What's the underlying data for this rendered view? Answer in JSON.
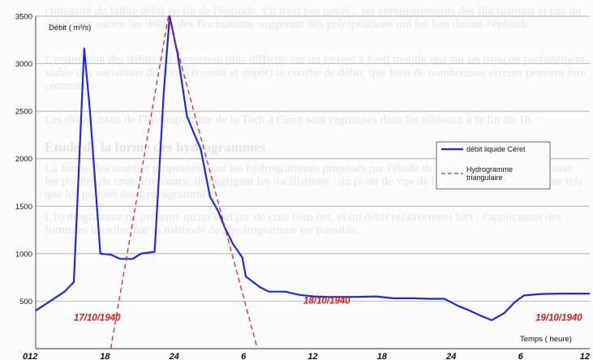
{
  "background_text": [
    "l'intensité du faible débit en fin de l'épisode, s'il n'est pas passé... les enregistrements des fluctuations et pas du débit peut suivre les débits des fluctuations suggèrent des précipitations qui les fois durant l'épisode.",
    "L'estimation des débits est beaucoup plus difficile sur un torrent à fond mobile que sur un tronçon parfaitement stable des variations du fond (érosion et dépôt) la courbe de débit, que bien de nombreuses erreurs peuvent être commises.",
    "Les débits issus de l'hydrogramme de la Tech à Céret sont regroupés dans les tableaux à la fin du 18.",
    "Étude de la forme des hydrogrammes",
    "La forme des courbes proposées pour les hydrogrammes proposés par l'étude de la DDEA est cohérente avec les pointes de crue. En contre, ils négligent les oscillations : du point de vue de l'étude des débits de pointe tels que les pointes des hydrogrammes.",
    "L'hydrogramme ne présente qu'un seul pic de crue bien net, et un débit relativement fort ; l'application des formules usuelles par la méthode de l'hydrogramme est possible."
  ],
  "chart_data": {
    "type": "line",
    "ylabel": "Débit ( m³/s)",
    "xlabel": "Temps ( heure)",
    "ylim": [
      0,
      3500
    ],
    "yticks": [
      0,
      500,
      1000,
      1500,
      2000,
      2500,
      3000,
      3500
    ],
    "ytick_labels": [
      "",
      "500",
      "1000",
      "1500",
      "2000",
      "2500",
      "3000",
      "3500"
    ],
    "xlim": [
      12,
      60
    ],
    "xticks": [
      12,
      18,
      24,
      30,
      36,
      42,
      48,
      54,
      60
    ],
    "xtick_labels": [
      "012",
      "18",
      "24",
      "6",
      "12",
      "18",
      "24",
      "6",
      "12"
    ],
    "date_labels": [
      {
        "text": "17/10/1940",
        "x": 15.3,
        "y": 330
      },
      {
        "text": "18/10/1940",
        "x": 35.2,
        "y": 510
      },
      {
        "text": "19/10/1940",
        "x": 55.3,
        "y": 330
      }
    ],
    "grid": "horizontal",
    "legend_position": "right",
    "series": [
      {
        "name": "débit liquide Céret",
        "color": "#1f2bd6",
        "style": "solid",
        "points": [
          [
            12,
            400
          ],
          [
            13,
            480
          ],
          [
            14.5,
            600
          ],
          [
            15.3,
            700
          ],
          [
            16.2,
            3160
          ],
          [
            16.7,
            2500
          ],
          [
            17.6,
            1000
          ],
          [
            18.5,
            990
          ],
          [
            19.3,
            945
          ],
          [
            20.4,
            945
          ],
          [
            21.1,
            1000
          ],
          [
            22.3,
            1020
          ],
          [
            23.1,
            2700
          ],
          [
            23.6,
            3500
          ],
          [
            24.3,
            3100
          ],
          [
            25.1,
            2450
          ],
          [
            25.6,
            2300
          ],
          [
            26.3,
            2100
          ],
          [
            27.1,
            1600
          ],
          [
            27.8,
            1450
          ],
          [
            28.4,
            1270
          ],
          [
            29.1,
            1100
          ],
          [
            29.9,
            960
          ],
          [
            30.2,
            760
          ],
          [
            31.4,
            650
          ],
          [
            32.2,
            600
          ],
          [
            33.6,
            600
          ],
          [
            34.9,
            565
          ],
          [
            36.1,
            550
          ],
          [
            37.4,
            545
          ],
          [
            38.6,
            545
          ],
          [
            39.8,
            545
          ],
          [
            41.5,
            550
          ],
          [
            43.0,
            530
          ],
          [
            44.7,
            530
          ],
          [
            46.0,
            525
          ],
          [
            47.4,
            525
          ],
          [
            48.6,
            450
          ],
          [
            49.6,
            400
          ],
          [
            50.6,
            345
          ],
          [
            51.5,
            300
          ],
          [
            52.6,
            375
          ],
          [
            53.5,
            490
          ],
          [
            54.3,
            560
          ],
          [
            55.8,
            575
          ],
          [
            57.5,
            580
          ],
          [
            60,
            580
          ]
        ]
      },
      {
        "name": "Hydrogramme triangulaire",
        "color": "#e02828",
        "style": "dashed",
        "points": [
          [
            18.5,
            0
          ],
          [
            23.5,
            3500
          ],
          [
            31.2,
            0
          ]
        ]
      }
    ]
  }
}
